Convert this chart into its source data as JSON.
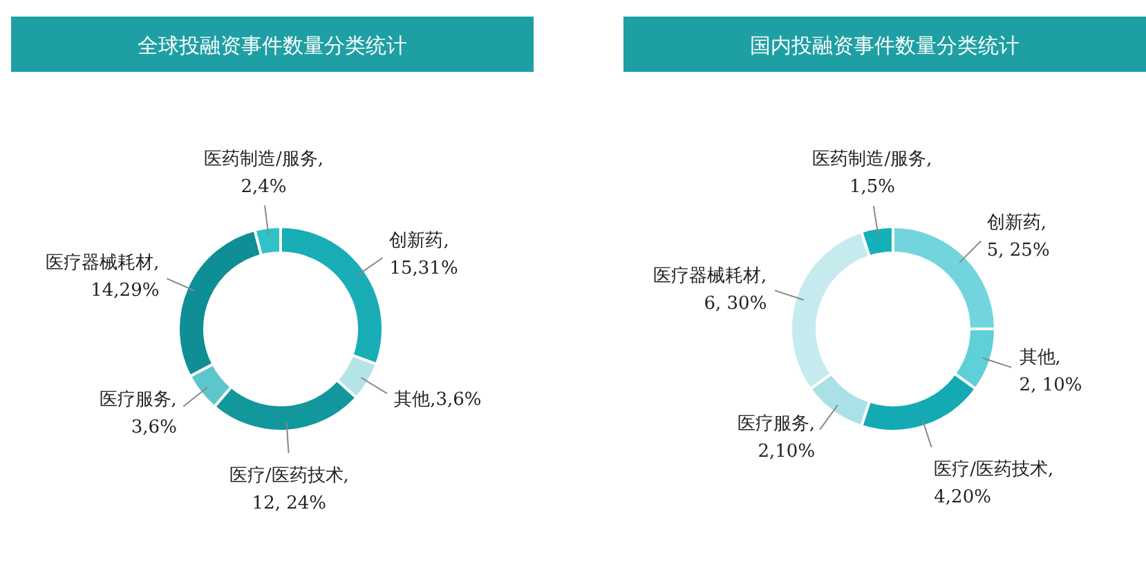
{
  "chart_data": [
    {
      "type": "donut",
      "title": "全球投融资事件数量分类统计",
      "categories": [
        "创新药,15,31%",
        "其他,3,6%",
        "医疗/医药技术, 12, 24%",
        "医疗服务,3,6%",
        "医疗器械耗材,14,29%",
        "医药制造/服务,2,4%"
      ],
      "values": [
        15,
        3,
        12,
        3,
        14,
        2
      ],
      "colors": [
        "#19adb6",
        "#b5e4e7",
        "#12979d",
        "#5cc6cb",
        "#0f8f95",
        "#2fc2c8"
      ]
    },
    {
      "type": "donut",
      "title": "国内投融资事件数量分类统计",
      "categories": [
        "创新药, 5, 25%",
        "其他, 2, 10%",
        "医疗/医药技术,4,20%",
        "医疗服务,2,10%",
        "医疗器械耗材, 6, 30%",
        "医药制造/服务,1,5%"
      ],
      "values": [
        5,
        2,
        4,
        2,
        6,
        1
      ],
      "colors": [
        "#72d5dd",
        "#5fcfd8",
        "#13aab4",
        "#a9e1e6",
        "#c6ebef",
        "#15b0b7"
      ]
    }
  ]
}
